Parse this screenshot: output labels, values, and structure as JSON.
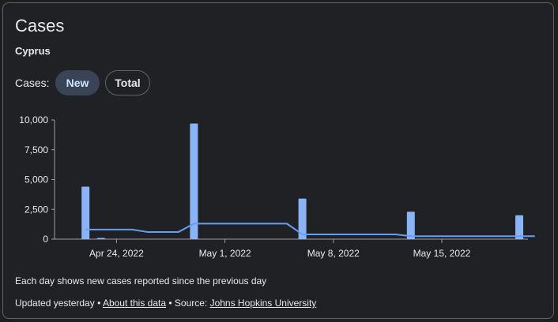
{
  "header": {
    "title": "Cases",
    "location": "Cyprus"
  },
  "toggle": {
    "label": "Cases:",
    "options": [
      "New",
      "Total"
    ],
    "selected": "New"
  },
  "chart_data": {
    "type": "bar",
    "ylim": [
      0,
      10000
    ],
    "y_ticks": [
      "10,000",
      "7,500",
      "5,000",
      "2,500",
      "0"
    ],
    "x_ticks": [
      "Apr 24, 2022",
      "May 1, 2022",
      "May 8, 2022",
      "May 15, 2022"
    ],
    "grid": false,
    "bars": [
      {
        "date": "Apr 22, 2022",
        "value": 4400
      },
      {
        "date": "Apr 23, 2022",
        "value": 100
      },
      {
        "date": "Apr 29, 2022",
        "value": 9700
      },
      {
        "date": "May 6, 2022",
        "value": 3400
      },
      {
        "date": "May 13, 2022",
        "value": 2300
      },
      {
        "date": "May 20, 2022",
        "value": 2000
      }
    ],
    "average": [
      {
        "date": "Apr 22, 2022",
        "value": 800
      },
      {
        "date": "Apr 25, 2022",
        "value": 800
      },
      {
        "date": "Apr 26, 2022",
        "value": 600
      },
      {
        "date": "Apr 28, 2022",
        "value": 600
      },
      {
        "date": "Apr 29, 2022",
        "value": 1300
      },
      {
        "date": "May 5, 2022",
        "value": 1300
      },
      {
        "date": "May 6, 2022",
        "value": 400
      },
      {
        "date": "May 12, 2022",
        "value": 400
      },
      {
        "date": "May 13, 2022",
        "value": 250
      },
      {
        "date": "May 21, 2022",
        "value": 250
      }
    ]
  },
  "note": "Each day shows new cases reported since the previous day",
  "footer": {
    "updated": "Updated yesterday",
    "sep1": " • ",
    "about_link": "About this data",
    "sep2": " • Source: ",
    "source_link": "Johns Hopkins University"
  },
  "colors": {
    "bar": "#8ab4f8",
    "line": "#669df6",
    "axis": "#9aa0a6"
  }
}
